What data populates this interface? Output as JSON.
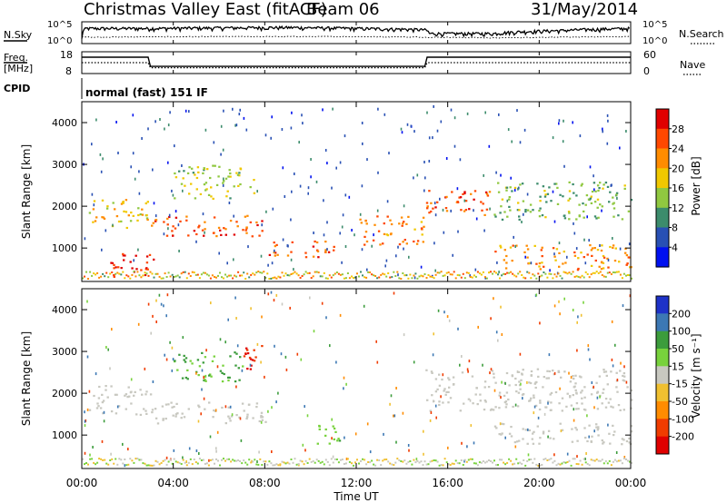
{
  "header": {
    "title": "Christmas Valley East (fitACF)",
    "beam": "Beam 06",
    "date": "31/May/2014"
  },
  "panels": {
    "nsky": {
      "left_label": "N.Sky",
      "right_label": "N.Search",
      "left_ticks": [
        "10^5",
        "10^0"
      ],
      "right_ticks": [
        "10^5",
        "10^0"
      ]
    },
    "freq": {
      "left_label_1": "Freq.",
      "left_label_2": "[MHz]",
      "right_label": "Nave",
      "left_ticks": [
        "18",
        "8"
      ],
      "right_ticks": [
        "60",
        "0"
      ]
    },
    "cpid": {
      "label": "CPID",
      "mode_text": "normal (fast) 151 IF"
    },
    "power": {
      "ylabel": "Slant Range [km]",
      "cbar_label": "Power [dB]",
      "cbar_ticks": [
        "28",
        "24",
        "20",
        "16",
        "12",
        "8",
        "4"
      ],
      "cbar_colors": [
        "#e00000",
        "#ff4800",
        "#ff8c00",
        "#f0c800",
        "#90c840",
        "#3c8c6c",
        "#2850b4",
        "#0010f0"
      ]
    },
    "velocity": {
      "ylabel": "Slant Range [km]",
      "cbar_label": "Velocity [m s⁻¹]",
      "cbar_ticks": [
        "200",
        "100",
        "50",
        "15",
        "-15",
        "-50",
        "-100",
        "-200"
      ],
      "cbar_colors": [
        "#1e32c8",
        "#3c78b4",
        "#3c9c3c",
        "#78d23c",
        "#c8c8c0",
        "#f0c030",
        "#ff8c00",
        "#f03c00",
        "#e00000"
      ]
    }
  },
  "x_axis": {
    "title": "Time UT",
    "ticks": [
      "00:00",
      "04:00",
      "08:00",
      "12:00",
      "16:00",
      "20:00",
      "00:00"
    ]
  },
  "chart_data": [
    {
      "type": "line",
      "title": "N.Sky / N.Search",
      "x_unit": "hours UT",
      "scale": "log",
      "series": [
        {
          "name": "N.Sky",
          "x": [
            0,
            0.2,
            3,
            6,
            9,
            12,
            15,
            15.2,
            18,
            21,
            24
          ],
          "y": [
            10,
            3000,
            3000,
            4000,
            5000,
            3000,
            1500,
            200,
            200,
            1000,
            3000
          ]
        },
        {
          "name": "N.Search",
          "x": [
            0,
            6,
            12,
            15,
            18,
            24
          ],
          "y": [
            30,
            40,
            40,
            30,
            20,
            40
          ]
        }
      ]
    },
    {
      "type": "line",
      "title": "Freq. / Nave",
      "x_unit": "hours UT",
      "series": [
        {
          "name": "Freq.",
          "x": [
            0,
            2.9,
            3.0,
            15.0,
            15.1,
            24
          ],
          "y": [
            15.5,
            15.5,
            11.3,
            11.3,
            15.5,
            15.5
          ]
        },
        {
          "name": "Nave",
          "x": [
            0,
            2.9,
            3.0,
            15.0,
            15.1,
            24
          ],
          "y": [
            30,
            30,
            16,
            16,
            30,
            30
          ]
        }
      ]
    },
    {
      "type": "heatmap",
      "title": "Power [dB]",
      "x_unit": "hours UT",
      "y_unit": "km",
      "ylim": [
        200,
        4500
      ],
      "cbar_range": [
        0,
        30
      ],
      "features": [
        {
          "t0": 0.3,
          "t1": 3.0,
          "r0": 1500,
          "r1": 2200,
          "power": 18
        },
        {
          "t0": 1.2,
          "t1": 3.2,
          "r0": 300,
          "r1": 900,
          "power": 28
        },
        {
          "t0": 3.0,
          "t1": 8.0,
          "r0": 1300,
          "r1": 1800,
          "power": 24
        },
        {
          "t0": 4.0,
          "t1": 7.5,
          "r0": 2200,
          "r1": 3000,
          "power": 14
        },
        {
          "t0": 8.0,
          "t1": 11.0,
          "r0": 800,
          "r1": 1200,
          "power": 24
        },
        {
          "t0": 12.0,
          "t1": 15.0,
          "r0": 1100,
          "r1": 1800,
          "power": 22
        },
        {
          "t0": 15.0,
          "t1": 18.0,
          "r0": 1800,
          "r1": 2400,
          "power": 24
        },
        {
          "t0": 18.0,
          "t1": 24.0,
          "r0": 1700,
          "r1": 2600,
          "power": 12
        },
        {
          "t0": 18.0,
          "t1": 24.0,
          "r0": 500,
          "r1": 1100,
          "power": 20
        }
      ]
    },
    {
      "type": "heatmap",
      "title": "Velocity [m s⁻¹]",
      "x_unit": "hours UT",
      "y_unit": "km",
      "ylim": [
        200,
        4500
      ],
      "cbar_range": [
        -200,
        200
      ],
      "features": [
        {
          "t0": 0.3,
          "t1": 3.0,
          "r0": 1500,
          "r1": 2200,
          "velocity": 0
        },
        {
          "t0": 3.0,
          "t1": 8.0,
          "r0": 1300,
          "r1": 1800,
          "velocity": 0
        },
        {
          "t0": 4.0,
          "t1": 7.0,
          "r0": 2300,
          "r1": 3000,
          "velocity": 50
        },
        {
          "t0": 7.0,
          "t1": 8.0,
          "r0": 2600,
          "r1": 3300,
          "velocity": -200
        },
        {
          "t0": 10.0,
          "t1": 11.3,
          "r0": 800,
          "r1": 1300,
          "velocity": 40
        },
        {
          "t0": 15.0,
          "t1": 24.0,
          "r0": 1600,
          "r1": 2600,
          "velocity": 0
        },
        {
          "t0": 18.0,
          "t1": 24.0,
          "r0": 800,
          "r1": 1300,
          "velocity": 0
        }
      ]
    }
  ]
}
